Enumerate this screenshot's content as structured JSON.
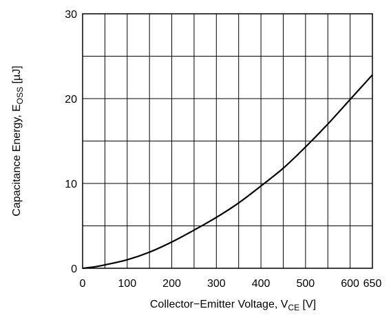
{
  "chart_data": {
    "type": "line",
    "title": "",
    "xlabel": "Collector−Emitter Voltage, V",
    "xlabel_sub": "CE",
    "xlabel_unit": " [V]",
    "ylabel": "Capacitance Energy, E",
    "ylabel_sub": "OSS",
    "ylabel_unit": " [µJ]",
    "xlim": [
      0,
      650
    ],
    "ylim": [
      0,
      30
    ],
    "grid": true,
    "x_ticks": [
      0,
      100,
      200,
      300,
      400,
      500,
      600,
      650
    ],
    "x_tick_labels": [
      "0",
      "100",
      "200",
      "300",
      "400",
      "500",
      "600",
      "650"
    ],
    "y_ticks": [
      0,
      10,
      20,
      30
    ],
    "y_tick_labels": [
      "0",
      "10",
      "20",
      "30"
    ],
    "series": [
      {
        "x": [
          0,
          25,
          50,
          100,
          150,
          200,
          250,
          300,
          350,
          400,
          450,
          500,
          550,
          600,
          650
        ],
        "y": [
          0,
          0.15,
          0.4,
          1.0,
          1.9,
          3.1,
          4.5,
          6.0,
          7.7,
          9.7,
          11.8,
          14.3,
          17.0,
          19.9,
          22.8
        ]
      }
    ]
  }
}
